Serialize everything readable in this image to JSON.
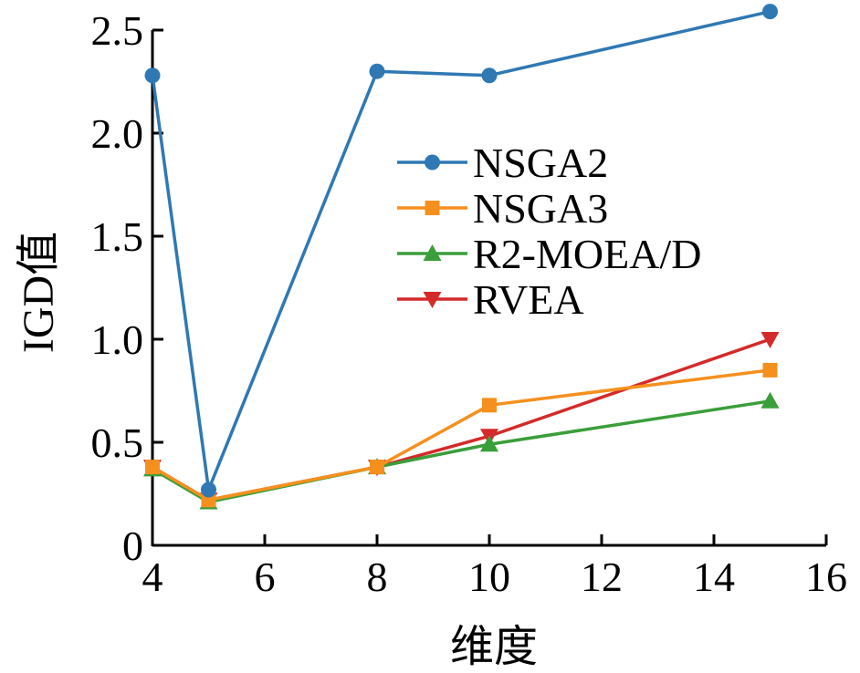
{
  "chart_data": {
    "type": "line",
    "title": "",
    "xlabel": "维度",
    "ylabel": "IGD值",
    "x": [
      4,
      5,
      8,
      10,
      15
    ],
    "xlim": [
      4,
      16
    ],
    "ylim": [
      0,
      2.5
    ],
    "x_ticks": [
      "4",
      "6",
      "8",
      "10",
      "12",
      "14",
      "16"
    ],
    "y_ticks": [
      "0",
      "0.5",
      "1.0",
      "1.5",
      "2.0",
      "2.5"
    ],
    "grid": false,
    "legend_position": "center-right",
    "series": [
      {
        "name": "NSGA2",
        "color": "#2f78b4",
        "marker": "circle",
        "values": [
          2.28,
          0.27,
          2.3,
          2.28,
          2.59
        ]
      },
      {
        "name": "NSGA3",
        "color": "#f5901e",
        "marker": "square",
        "values": [
          0.38,
          0.22,
          0.38,
          0.68,
          0.85
        ]
      },
      {
        "name": "R2-MOEA/D",
        "color": "#3a9e3a",
        "marker": "triangle-up",
        "values": [
          0.37,
          0.21,
          0.38,
          0.49,
          0.7
        ]
      },
      {
        "name": "RVEA",
        "color": "#d42a2a",
        "marker": "triangle-down",
        "values": [
          0.38,
          0.22,
          0.38,
          0.53,
          1.0
        ]
      }
    ]
  }
}
